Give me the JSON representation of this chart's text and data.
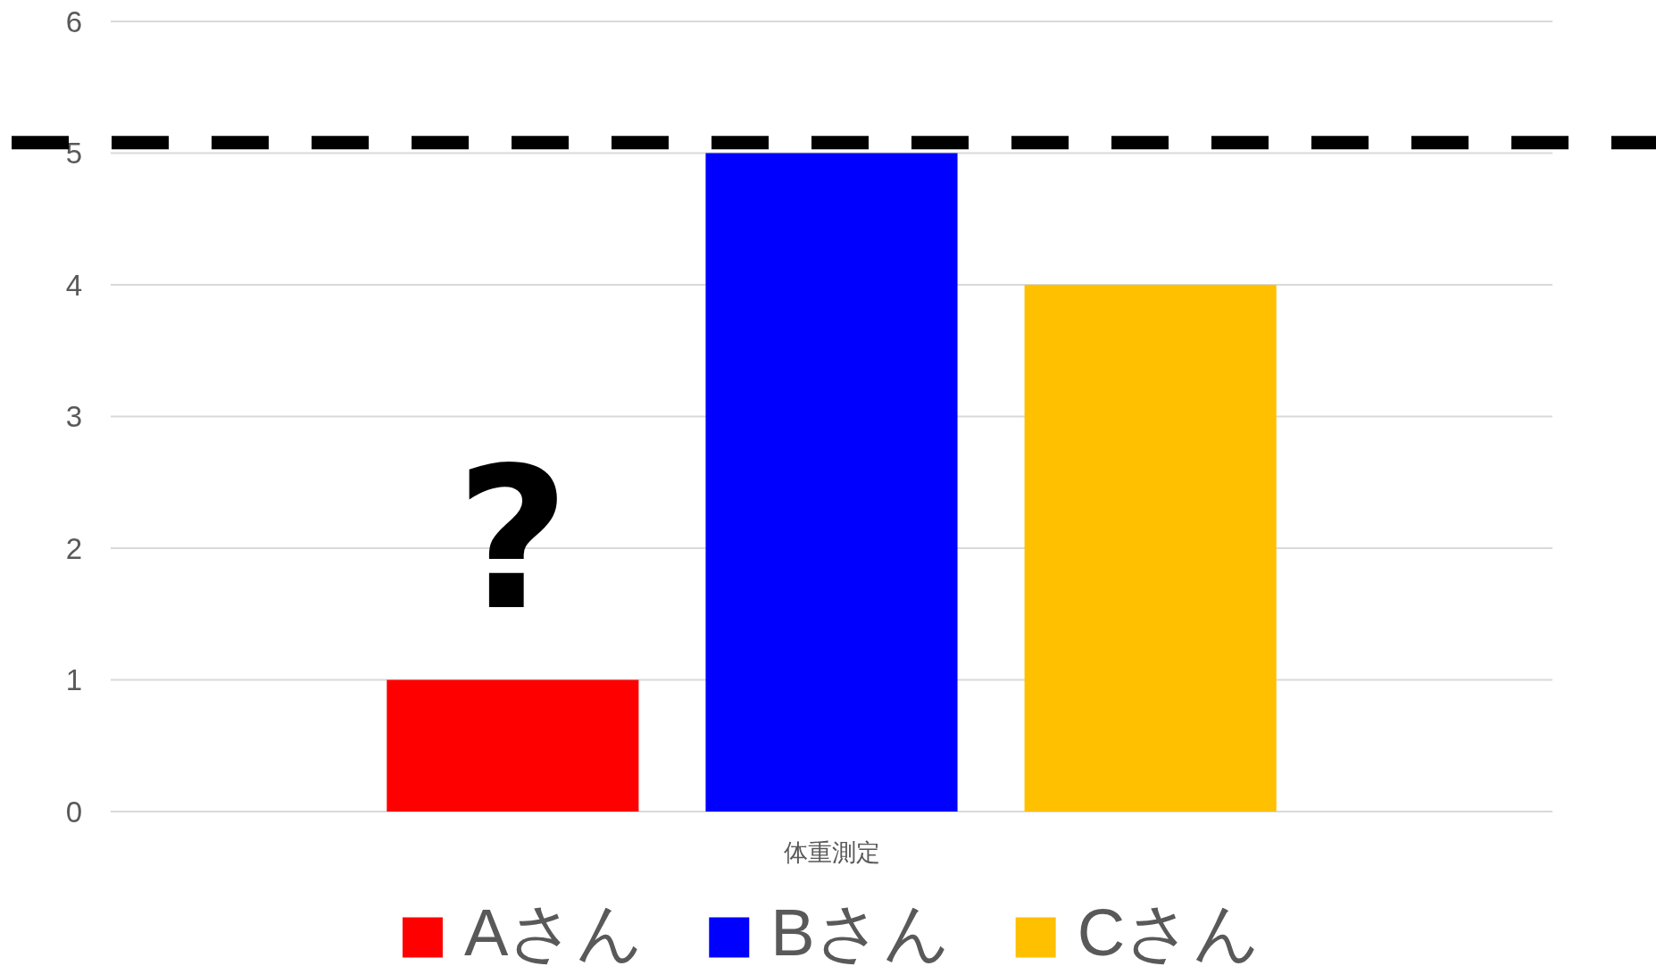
{
  "chart_data": {
    "type": "bar",
    "categories": [
      "体重測定"
    ],
    "series": [
      {
        "name": "Aさん",
        "color": "#ff0000",
        "values": [
          1
        ]
      },
      {
        "name": "Bさん",
        "color": "#0000ff",
        "values": [
          5
        ]
      },
      {
        "name": "Cさん",
        "color": "#ffc000",
        "values": [
          4
        ]
      }
    ],
    "ylim": [
      0,
      6
    ],
    "yticks": [
      0,
      1,
      2,
      3,
      4,
      5,
      6
    ],
    "grid": "y",
    "legend": "bottom",
    "ref_lines": [
      {
        "axis": "y",
        "value": 5.08,
        "color": "#000000",
        "line_style": "dashed"
      }
    ],
    "annotations": [
      "?"
    ]
  }
}
